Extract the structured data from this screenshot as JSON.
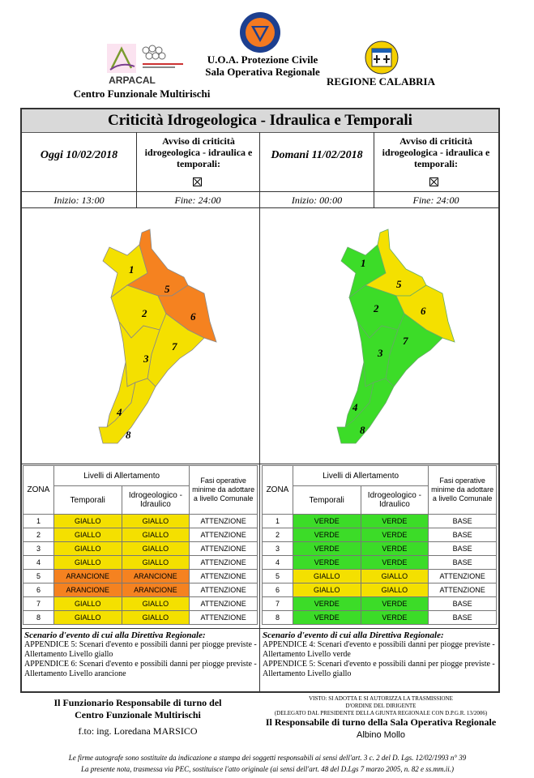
{
  "header": {
    "arpacal_name": "ARPACAL",
    "cfm_name": "Centro Funzionale Multirischi",
    "uoa_line1": "U.O.A. Protezione Civile",
    "uoa_line2": "Sala Operativa Regionale",
    "region_name": "REGIONE CALABRIA"
  },
  "title": "Criticità Idrogeologica - Idraulica e Temporali",
  "days": [
    {
      "date_label": "Oggi 10/02/2018",
      "avviso_label": "Avviso di criticità idrogeologica - idraulica e temporali:",
      "inizio": "Inizio: 13:00",
      "fine": "Fine: 24:00",
      "zone_colors": {
        "1": "#f4e000",
        "2": "#f4e000",
        "3": "#f4e000",
        "4": "#f4e000",
        "5": "#f58220",
        "6": "#f58220",
        "7": "#f4e000",
        "8": "#f4e000"
      },
      "table": {
        "zona_header": "ZONA",
        "livelli_header": "Livelli di Allertamento",
        "fasi_header": "Fasi operative minime da adottare a livello Comunale",
        "temporali_header": "Temporali",
        "idro_header": "Idrogeologico - Idraulico",
        "rows": [
          {
            "zona": "1",
            "temporali": "GIALLO",
            "idro": "GIALLO",
            "fase": "ATTENZIONE",
            "cls": "c-giallo"
          },
          {
            "zona": "2",
            "temporali": "GIALLO",
            "idro": "GIALLO",
            "fase": "ATTENZIONE",
            "cls": "c-giallo"
          },
          {
            "zona": "3",
            "temporali": "GIALLO",
            "idro": "GIALLO",
            "fase": "ATTENZIONE",
            "cls": "c-giallo"
          },
          {
            "zona": "4",
            "temporali": "GIALLO",
            "idro": "GIALLO",
            "fase": "ATTENZIONE",
            "cls": "c-giallo"
          },
          {
            "zona": "5",
            "temporali": "ARANCIONE",
            "idro": "ARANCIONE",
            "fase": "ATTENZIONE",
            "cls": "c-arancione"
          },
          {
            "zona": "6",
            "temporali": "ARANCIONE",
            "idro": "ARANCIONE",
            "fase": "ATTENZIONE",
            "cls": "c-arancione"
          },
          {
            "zona": "7",
            "temporali": "GIALLO",
            "idro": "GIALLO",
            "fase": "ATTENZIONE",
            "cls": "c-giallo"
          },
          {
            "zona": "8",
            "temporali": "GIALLO",
            "idro": "GIALLO",
            "fase": "ATTENZIONE",
            "cls": "c-giallo"
          }
        ]
      },
      "scenario_title": "Scenario d'evento di cui alla Direttiva Regionale:",
      "scenario_lines": [
        "APPENDICE 5: Scenari d'evento e possibili danni per piogge previste - Allertamento Livello giallo",
        "APPENDICE 6: Scenari d'evento e possibili danni per piogge previste - Allertamento Livello arancione"
      ]
    },
    {
      "date_label": "Domani 11/02/2018",
      "avviso_label": "Avviso di criticità idrogeologica - idraulica e temporali:",
      "inizio": "Inizio: 00:00",
      "fine": "Fine: 24:00",
      "zone_colors": {
        "1": "#3cdc28",
        "2": "#3cdc28",
        "3": "#3cdc28",
        "4": "#3cdc28",
        "5": "#f4e000",
        "6": "#f4e000",
        "7": "#3cdc28",
        "8": "#3cdc28"
      },
      "table": {
        "zona_header": "ZONA",
        "livelli_header": "Livelli di Allertamento",
        "fasi_header": "Fasi operative minime da adottare a livello Comunale",
        "temporali_header": "Temporali",
        "idro_header": "Idrogeologico - Idraulico",
        "rows": [
          {
            "zona": "1",
            "temporali": "VERDE",
            "idro": "VERDE",
            "fase": "BASE",
            "cls": "c-verde"
          },
          {
            "zona": "2",
            "temporali": "VERDE",
            "idro": "VERDE",
            "fase": "BASE",
            "cls": "c-verde"
          },
          {
            "zona": "3",
            "temporali": "VERDE",
            "idro": "VERDE",
            "fase": "BASE",
            "cls": "c-verde"
          },
          {
            "zona": "4",
            "temporali": "VERDE",
            "idro": "VERDE",
            "fase": "BASE",
            "cls": "c-verde"
          },
          {
            "zona": "5",
            "temporali": "GIALLO",
            "idro": "GIALLO",
            "fase": "ATTENZIONE",
            "cls": "c-giallo"
          },
          {
            "zona": "6",
            "temporali": "GIALLO",
            "idro": "GIALLO",
            "fase": "ATTENZIONE",
            "cls": "c-giallo"
          },
          {
            "zona": "7",
            "temporali": "VERDE",
            "idro": "VERDE",
            "fase": "BASE",
            "cls": "c-verde"
          },
          {
            "zona": "8",
            "temporali": "VERDE",
            "idro": "VERDE",
            "fase": "BASE",
            "cls": "c-verde"
          }
        ]
      },
      "scenario_title": "Scenario d'evento di cui alla Direttiva Regionale:",
      "scenario_lines": [
        "APPENDICE 4: Scenari d'evento e possibili danni per piogge previste - Allertamento Livello verde",
        "APPENDICE 5: Scenari d'evento e possibili danni per piogge previste - Allertamento Livello giallo"
      ]
    }
  ],
  "footer": {
    "funzionario_line1": "Il Funzionario Responsabile di turno del",
    "funzionario_line2": "Centro Funzionale Multirischi",
    "fto": "f.to: ing. Loredana MARSICO",
    "visto_line1": "VISTO: SI ADOTTA E SI AUTORIZZA LA TRASMISSIONE",
    "visto_line2": "D'ORDINE DEL DIRIGENTE",
    "visto_line3": "(DELEGATO DAL PRESIDENTE DELLA GIUNTA REGIONALE CON D.P.G.R. 13/2006)",
    "responsabile": "Il Responsabile di turno della Sala Operativa Regionale",
    "responsabile_name": "Albino Mollo",
    "note1": "Le firme autografe sono sostituite da indicazione a stampa dei soggetti responsabili ai sensi dell'art. 3 c. 2 del D. Lgs. 12/02/1993 n° 39",
    "note2": "La presente nota, trasmessa via PEC, sostituisce l'atto originale (ai sensi dell'art. 48 del D.Lgs 7 marzo 2005, n. 82 e ss.mm.ii.)"
  }
}
